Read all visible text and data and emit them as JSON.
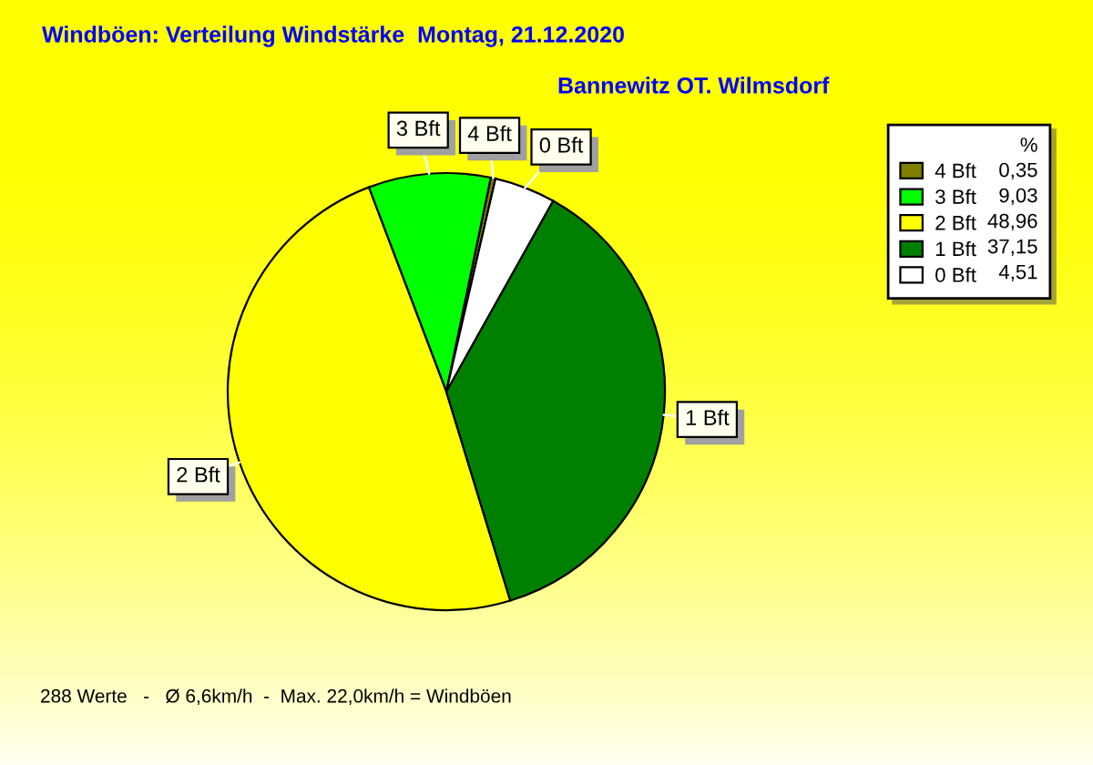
{
  "chart_data": {
    "type": "pie",
    "title": "Windböen: Verteilung Windstärke  Montag, 21.12.2020",
    "subtitle": "Bannewitz OT. Wilmsdorf",
    "categories": [
      "4 Bft",
      "3 Bft",
      "2 Bft",
      "1 Bft",
      "0 Bft"
    ],
    "values": [
      0.35,
      9.03,
      48.96,
      37.15,
      4.51
    ],
    "value_labels": [
      "0,35",
      "9,03",
      "48,96",
      "37,15",
      "4,51"
    ],
    "colors": [
      "#808000",
      "#00ff00",
      "#ffff00",
      "#008000",
      "#ffffff"
    ],
    "legend": "top right",
    "legend_title": "%",
    "annotations": [
      "288 Werte   -   Ø 6,6km/h  -  Max. 22,0km/h = Windböen"
    ]
  }
}
